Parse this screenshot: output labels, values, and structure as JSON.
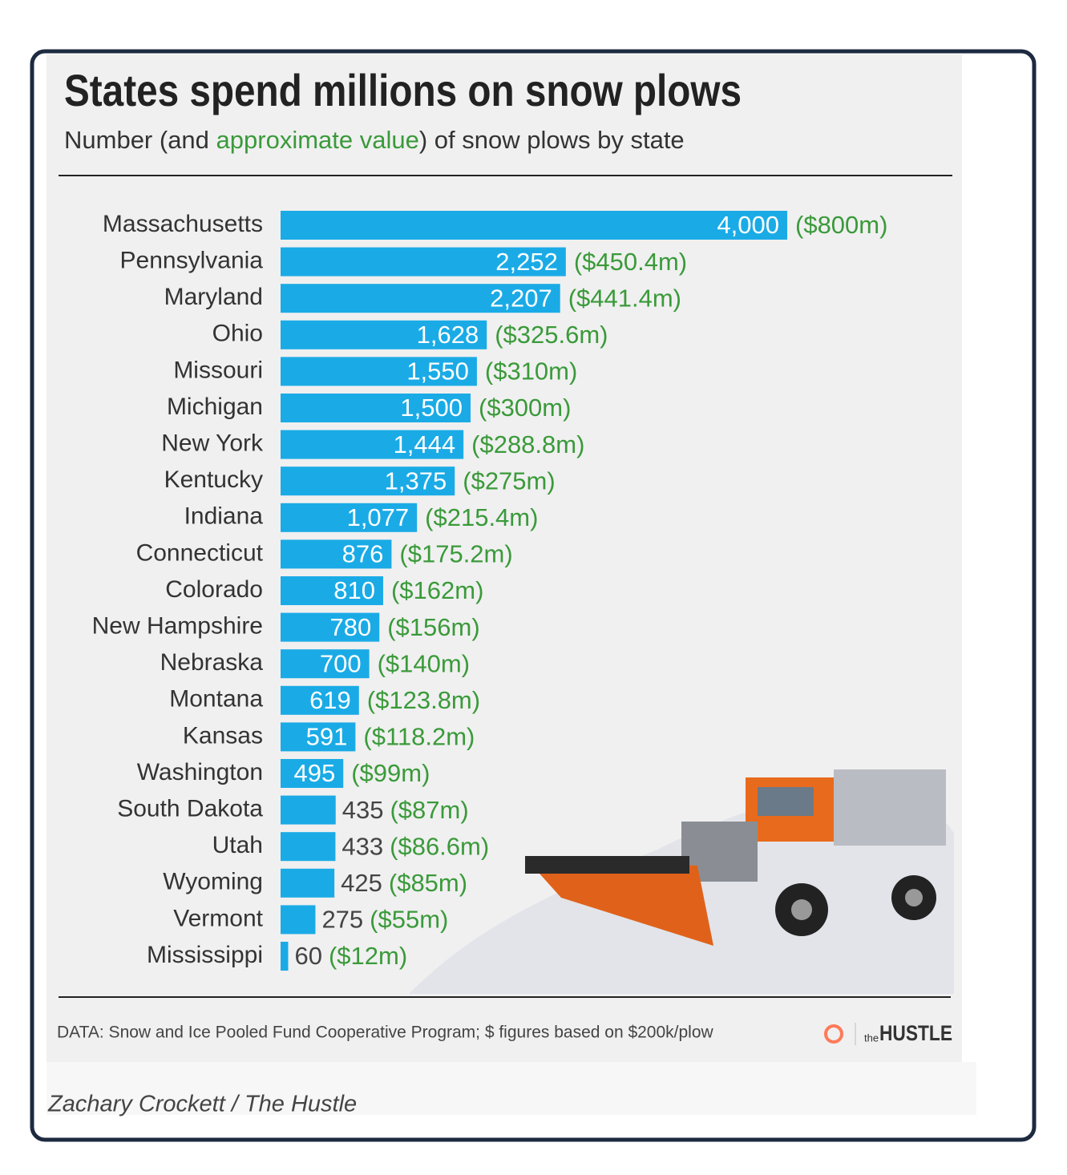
{
  "chart_data": {
    "type": "bar",
    "orientation": "horizontal",
    "title": "States spend millions on snow plows",
    "subtitle_parts": [
      "Number (and ",
      "approximate value",
      ") of snow plows by state"
    ],
    "categories": [
      "Massachusetts",
      "Pennsylvania",
      "Maryland",
      "Ohio",
      "Missouri",
      "Michigan",
      "New York",
      "Kentucky",
      "Indiana",
      "Connecticut",
      "Colorado",
      "New Hampshire",
      "Nebraska",
      "Montana",
      "Kansas",
      "Washington",
      "South Dakota",
      "Utah",
      "Wyoming",
      "Vermont",
      "Mississippi"
    ],
    "values": [
      4000,
      2252,
      2207,
      1628,
      1550,
      1500,
      1444,
      1375,
      1077,
      876,
      810,
      780,
      700,
      619,
      591,
      495,
      435,
      433,
      425,
      275,
      60
    ],
    "value_labels": [
      "4,000",
      "2,252",
      "2,207",
      "1,628",
      "1,550",
      "1,500",
      "1,444",
      "1,375",
      "1,077",
      "876",
      "810",
      "780",
      "700",
      "619",
      "591",
      "495",
      "435",
      "433",
      "425",
      "275",
      "60"
    ],
    "dollar_labels": [
      "($800m)",
      "($450.4m)",
      "($441.4m)",
      "($325.6m)",
      "($310m)",
      "($300m)",
      "($288.8m)",
      "($275m)",
      "($215.4m)",
      "($175.2m)",
      "($162m)",
      "($156m)",
      "($140m)",
      "($123.8m)",
      "($118.2m)",
      "($99m)",
      "($87m)",
      "($86.6m)",
      "($85m)",
      "($55m)",
      "($12m)"
    ],
    "color": "#1aabe6",
    "dollar_color": "#3a9a3a",
    "xlim": [
      0,
      4000
    ],
    "source": "DATA: Snow and Ice Pooled Fund Cooperative Program; $ figures based on $200k/plow",
    "logo_small": "the",
    "logo": "HUSTLE",
    "credit": "Zachary Crockett / The Hustle"
  }
}
